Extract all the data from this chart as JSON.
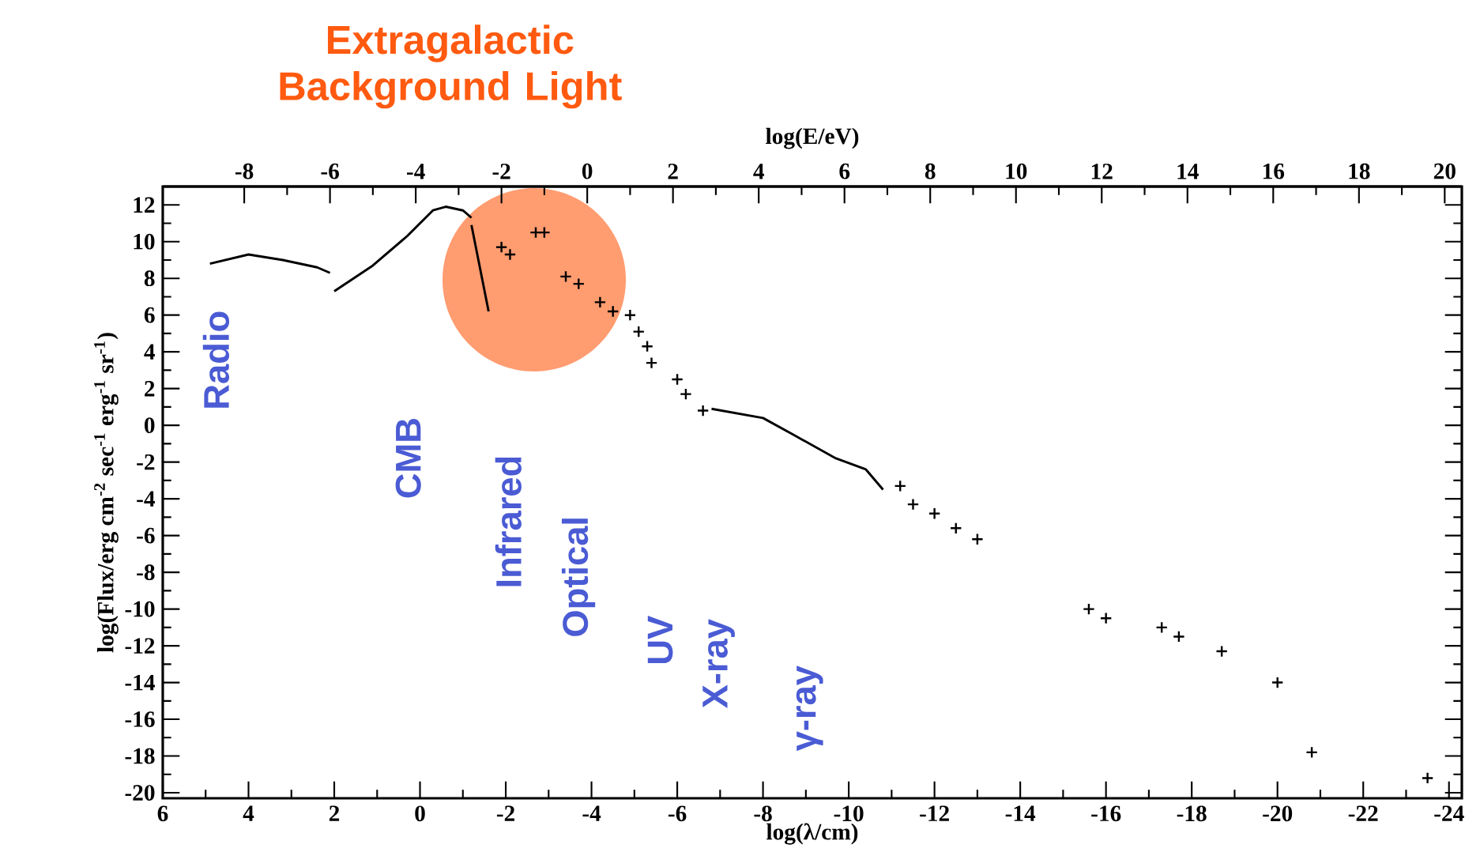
{
  "chart_data": {
    "type": "line",
    "xlabel": "log(λ/cm)",
    "x2label": "log(E/eV)",
    "ylabel": "log(Flux/erg cm$^{-2}$ sec$^{-1}$ erg$^{-1}$ sr$^{-1}$)",
    "xlim": [
      6,
      -24.3
    ],
    "xticks": [
      6,
      4,
      2,
      0,
      -2,
      -4,
      -6,
      -8,
      -10,
      -12,
      -14,
      -16,
      -18,
      -20,
      -22,
      -24
    ],
    "x2lim": [
      -9.9,
      20.4
    ],
    "x2ticks": [
      -8,
      -6,
      -4,
      -2,
      0,
      2,
      4,
      6,
      8,
      10,
      12,
      14,
      16,
      18,
      20
    ],
    "ylim": [
      -20.3,
      13
    ],
    "yticks": [
      -20,
      -18,
      -16,
      -14,
      -12,
      -10,
      -8,
      -6,
      -4,
      -2,
      0,
      2,
      4,
      6,
      8,
      10,
      12
    ],
    "series": [
      {
        "marker": "none",
        "color": "#000000",
        "x": [
          4.9,
          4.0,
          3.2,
          2.4,
          2.1
        ],
        "values": [
          8.8,
          9.3,
          9.0,
          8.6,
          8.3
        ]
      },
      {
        "marker": "none",
        "color": "#000000",
        "x": [
          2.0,
          1.1,
          0.3,
          -0.3,
          -0.6,
          -1.0,
          -1.2
        ],
        "values": [
          7.3,
          8.7,
          10.3,
          11.7,
          11.9,
          11.7,
          11.3
        ]
      },
      {
        "marker": "none",
        "color": "#000000",
        "x": [
          -1.2,
          -1.6
        ],
        "values": [
          10.9,
          6.2
        ]
      },
      {
        "marker": "none",
        "color": "#000000",
        "x": [
          -6.8,
          -8.0,
          -8.7,
          -9.7,
          -10.4,
          -10.8
        ],
        "values": [
          0.9,
          0.4,
          -0.5,
          -1.8,
          -2.4,
          -3.5
        ]
      },
      {
        "type": "scatter",
        "marker": "cross",
        "color": "#000000",
        "x": [
          -1.9,
          -2.1,
          -2.7,
          -2.9,
          -3.4,
          -3.7,
          -4.2,
          -4.5,
          -4.9,
          -5.1,
          -5.3,
          -5.4,
          -6.0,
          -6.2,
          -6.6,
          -11.2,
          -11.5,
          -12.0,
          -12.5,
          -13.0,
          -15.6,
          -16.0,
          -17.3,
          -17.7,
          -18.7,
          -20.0,
          -20.8,
          -23.5
        ],
        "values": [
          9.7,
          9.3,
          10.5,
          10.5,
          8.1,
          7.7,
          6.7,
          6.2,
          6.0,
          5.1,
          4.3,
          3.4,
          2.5,
          1.7,
          0.8,
          -3.3,
          -4.3,
          -4.8,
          -5.6,
          -6.2,
          -10.0,
          -10.5,
          -11.0,
          -11.5,
          -12.3,
          -14.0,
          -17.8,
          -19.2
        ]
      }
    ],
    "annotations": [
      "Extragalactic Background Light",
      "Radio",
      "CMB",
      "Infrared",
      "Optical",
      "UV",
      "X-ray",
      "γ-ray"
    ]
  }
}
